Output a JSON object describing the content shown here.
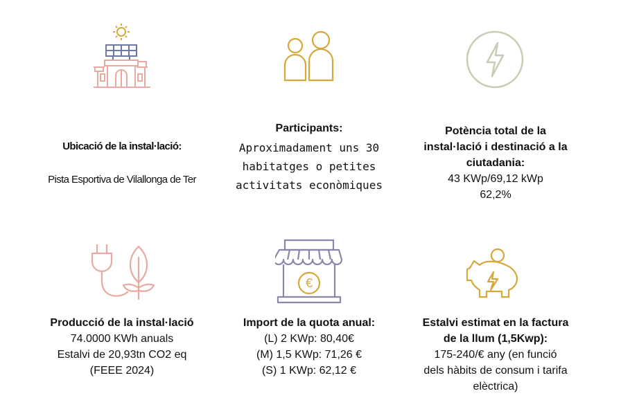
{
  "items": [
    {
      "title": "Ubicació de la instal·lació:",
      "lines": [
        "Pista Esportiva de Vilallonga de Ter"
      ],
      "icon": "solar-building-icon"
    },
    {
      "title": "Participants:",
      "lines": [
        "Aproximadament uns 30",
        "habitatges o petites",
        "activitats econòmiques"
      ],
      "icon": "people-icon"
    },
    {
      "title_lines": [
        "Potència total de la",
        "instal·lació i destinació a la",
        "ciutadania:"
      ],
      "lines": [
        "43 KWp/69,12 kWp",
        "62,2%"
      ],
      "icon": "lightning-circle-icon"
    },
    {
      "title": "Producció de la instal·lació",
      "lines": [
        "74.0000 KWh anuals",
        "Estalvi de 20,93tn CO2 eq",
        "(FEEE 2024)"
      ],
      "icon": "plug-leaf-icon"
    },
    {
      "title": "Import de la quota anual:",
      "lines": [
        "(L) 2 KWp: 80,40€",
        "(M) 1,5 KWp: 71,26 €",
        "(S) 1 KWp: 62,12 €"
      ],
      "icon": "market-stall-euro-icon"
    },
    {
      "title_lines": [
        "Estalvi estimat en la factura",
        "de la llum (1,5Kwp):"
      ],
      "lines": [
        "175-240/€ any (en funció",
        "dels hàbits de consum i tarifa",
        "elèctrica)"
      ],
      "icon": "piggy-bank-lightning-icon"
    }
  ],
  "colors": {
    "pink": "#e8a9a1",
    "navy": "#6f77a3",
    "gold": "#d6a83a",
    "sage": "#c9ccb5",
    "purple": "#8a86a8"
  }
}
